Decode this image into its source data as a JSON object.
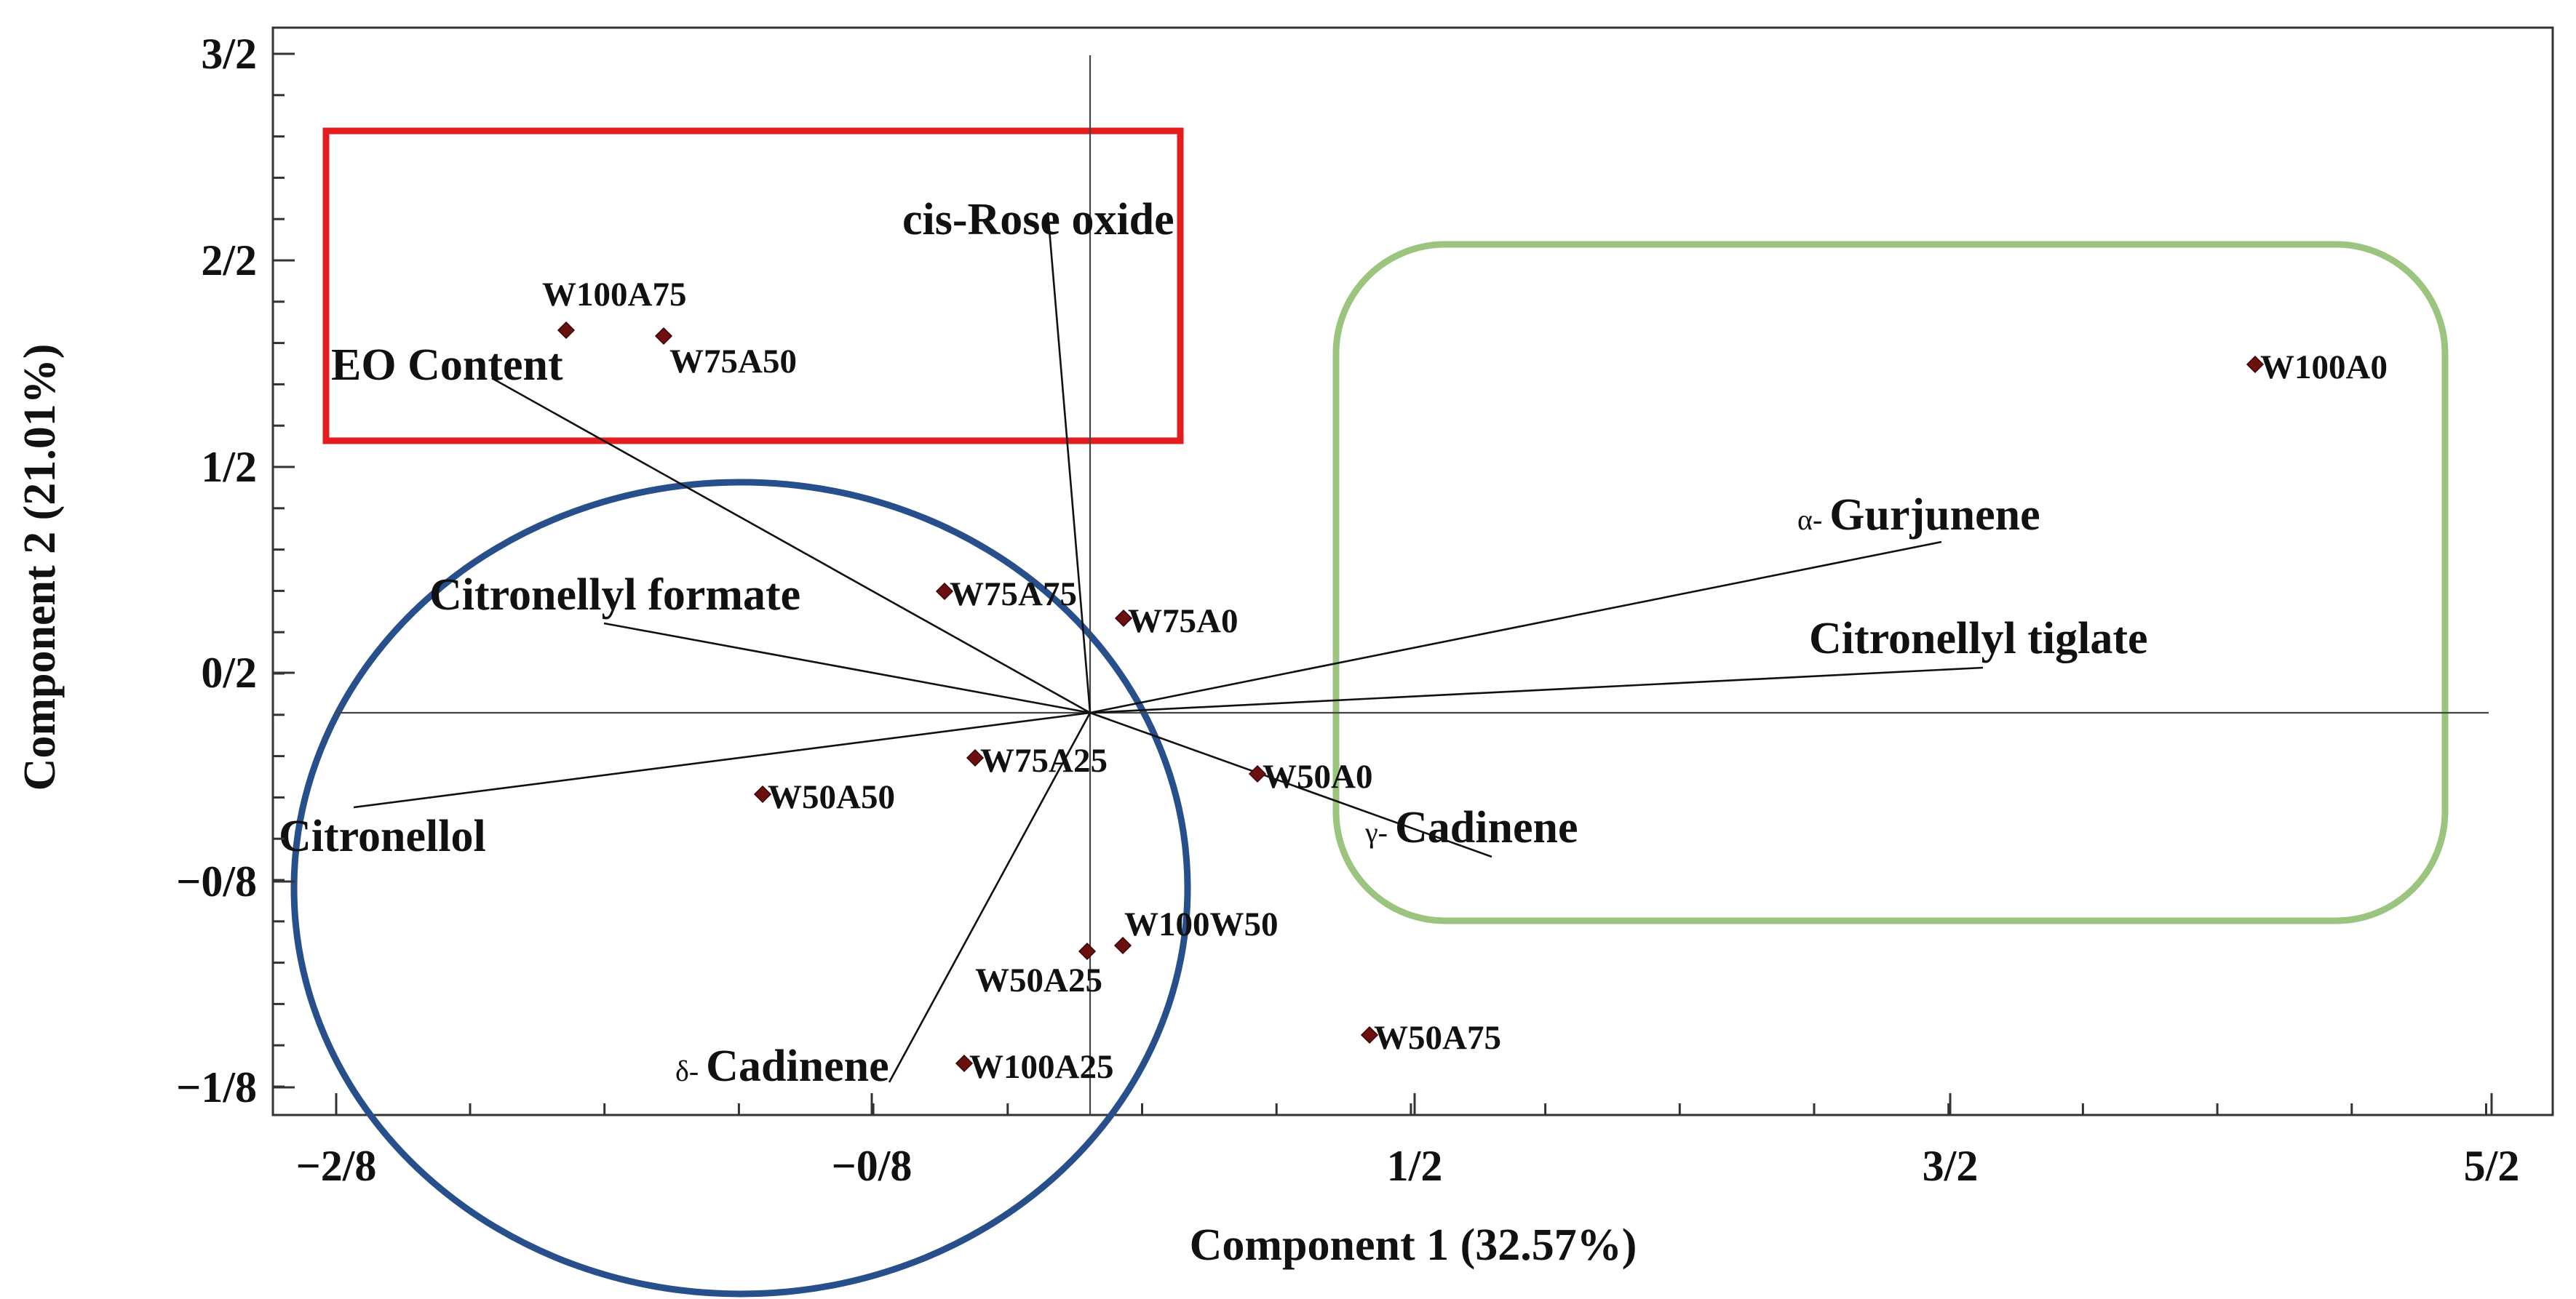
{
  "chart_data": {
    "type": "scatter",
    "subtype": "pca-biplot",
    "xlabel": "Component 1 (32.57%)",
    "ylabel": "Component 2 (21.01%)",
    "xlim": [
      -2.2,
      5.2
    ],
    "ylim": [
      -1.2,
      1.6
    ],
    "grid": false,
    "xticks": [
      {
        "value": -2,
        "label": "−2/8"
      },
      {
        "value": 0,
        "label": "−0/8"
      },
      {
        "value": 2,
        "label": "1/2"
      },
      {
        "value": 4,
        "label": "3/2"
      },
      {
        "value": 6,
        "label": "5/2"
      }
    ],
    "yticks": [
      {
        "value": -1.0,
        "label": "−1/8"
      },
      {
        "value": -0.4,
        "label": "−0/8"
      },
      {
        "value": 0.2,
        "label": "0/2"
      },
      {
        "value": 0.8,
        "label": "1/2"
      },
      {
        "value": 1.4,
        "label": "2/2"
      },
      {
        "value": 2.0,
        "label": "3/2"
      }
    ],
    "xrange": [
      -2.25,
      5.8
    ],
    "yrange": [
      -1.08,
      2.1
    ],
    "origin": [
      0.8,
      0.08
    ],
    "samples": [
      {
        "name": "W100A75",
        "x": -1.17,
        "y": 1.2
      },
      {
        "name": "W75A50",
        "x": -0.81,
        "y": 1.19
      },
      {
        "name": "W100A0",
        "x": 5.55,
        "y": 1.04
      },
      {
        "name": "W75A75",
        "x": 0.25,
        "y": 0.46
      },
      {
        "name": "W75A0",
        "x": 0.92,
        "y": 0.38
      },
      {
        "name": "W75A25",
        "x": 0.36,
        "y": -0.03
      },
      {
        "name": "W50A50",
        "x": -0.49,
        "y": -0.14
      },
      {
        "name": "W50A0",
        "x": 1.42,
        "y": -0.06
      },
      {
        "name": "W100W50",
        "x": 0.92,
        "y": -0.62
      },
      {
        "name": "W50A25",
        "x": 0.79,
        "y": -0.63
      },
      {
        "name": "W50A75",
        "x": 1.83,
        "y": -0.88
      },
      {
        "name": "W100A25",
        "x": 0.37,
        "y": -1.03
      }
    ],
    "variables": [
      {
        "name": "cis-Rose oxide",
        "prefix": "",
        "x": 0.64,
        "y": 1.41
      },
      {
        "name": "EO Content",
        "prefix": "",
        "x": -1.42,
        "y": 1.08
      },
      {
        "name": "Gurjunene",
        "prefix": "α-",
        "x": 3.94,
        "y": 0.49
      },
      {
        "name": "Citronellyl formate",
        "prefix": "",
        "x": -1.02,
        "y": 0.33
      },
      {
        "name": "Citronellyl tiglate",
        "prefix": "",
        "x": 4.1,
        "y": 0.19
      },
      {
        "name": "Cadinene",
        "prefix": "γ-",
        "x": 2.29,
        "y": -0.29
      },
      {
        "name": "Citronellol",
        "prefix": "",
        "x": -2.06,
        "y": -0.15
      },
      {
        "name": "Cadinene",
        "prefix": "δ-",
        "x": -0.07,
        "y": -0.96
      }
    ],
    "group_outlines": [
      {
        "shape": "rectangle",
        "color": "#e31d1d"
      },
      {
        "shape": "ellipse",
        "color": "#264f8c"
      },
      {
        "shape": "rounded-rectangle",
        "color": "#9bc47e"
      }
    ]
  }
}
